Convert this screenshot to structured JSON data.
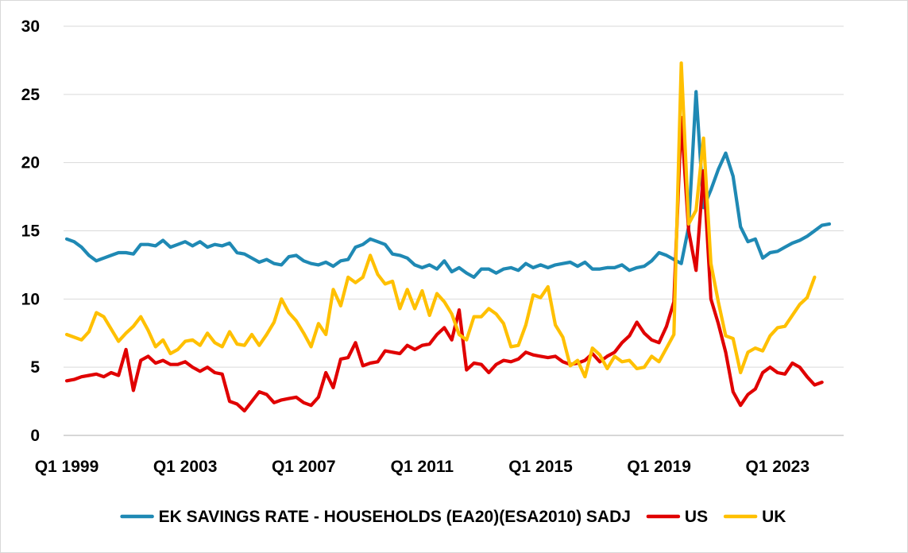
{
  "chart_data": {
    "type": "line",
    "title": "",
    "xlabel": "",
    "ylabel": "",
    "ylim": [
      0,
      30
    ],
    "yticks": [
      0,
      5,
      10,
      15,
      20,
      25,
      30
    ],
    "grid": "horizontal",
    "legend": "bottom",
    "x_start": "Q1 1999",
    "x_tick_labels": [
      "Q1 1999",
      "Q1 2003",
      "Q1 2007",
      "Q1 2011",
      "Q1 2015",
      "Q1 2019",
      "Q1 2023"
    ],
    "x_tick_every": 16,
    "series": [
      {
        "name": "EK SAVINGS RATE - HOUSEHOLDS (EA20)(ESA2010) SADJ",
        "color": "#1f89b4",
        "values": [
          14.4,
          14.2,
          13.8,
          13.2,
          12.8,
          13.0,
          13.2,
          13.4,
          13.4,
          13.3,
          14.0,
          14.0,
          13.9,
          14.3,
          13.8,
          14.0,
          14.2,
          13.9,
          14.2,
          13.8,
          14.0,
          13.9,
          14.1,
          13.4,
          13.3,
          13.0,
          12.7,
          12.9,
          12.6,
          12.5,
          13.1,
          13.2,
          12.8,
          12.6,
          12.5,
          12.7,
          12.4,
          12.8,
          12.9,
          13.8,
          14.0,
          14.4,
          14.2,
          14.0,
          13.3,
          13.2,
          13.0,
          12.5,
          12.3,
          12.5,
          12.2,
          12.8,
          12.0,
          12.3,
          11.9,
          11.6,
          12.2,
          12.2,
          11.9,
          12.2,
          12.3,
          12.1,
          12.6,
          12.3,
          12.5,
          12.3,
          12.5,
          12.6,
          12.7,
          12.4,
          12.7,
          12.2,
          12.2,
          12.3,
          12.3,
          12.5,
          12.1,
          12.3,
          12.4,
          12.8,
          13.4,
          13.2,
          12.9,
          12.6,
          15.3,
          25.2,
          16.7,
          18.0,
          19.5,
          20.7,
          19.0,
          15.3,
          14.2,
          14.4,
          13.0,
          13.4,
          13.5,
          13.8,
          14.1,
          14.3,
          14.6,
          15.0,
          15.4,
          15.5
        ]
      },
      {
        "name": "US",
        "color": "#e00000",
        "values": [
          4.0,
          4.1,
          4.3,
          4.4,
          4.5,
          4.3,
          4.6,
          4.4,
          6.3,
          3.3,
          5.5,
          5.8,
          5.3,
          5.5,
          5.2,
          5.2,
          5.4,
          5.0,
          4.7,
          5.0,
          4.6,
          4.5,
          2.5,
          2.3,
          1.8,
          2.5,
          3.2,
          3.0,
          2.4,
          2.6,
          2.7,
          2.8,
          2.4,
          2.2,
          2.8,
          4.6,
          3.5,
          5.6,
          5.7,
          6.8,
          5.1,
          5.3,
          5.4,
          6.2,
          6.1,
          6.0,
          6.6,
          6.3,
          6.6,
          6.7,
          7.4,
          7.9,
          7.0,
          9.2,
          4.8,
          5.3,
          5.2,
          4.6,
          5.2,
          5.5,
          5.4,
          5.6,
          6.1,
          5.9,
          5.8,
          5.7,
          5.8,
          5.4,
          5.2,
          5.3,
          5.5,
          6.0,
          5.4,
          5.8,
          6.1,
          6.8,
          7.3,
          8.3,
          7.5,
          7.0,
          6.8,
          8.0,
          9.8,
          23.3,
          15.0,
          12.1,
          19.4,
          10.0,
          8.2,
          6.1,
          3.2,
          2.2,
          3.0,
          3.4,
          4.6,
          5.0,
          4.6,
          4.5,
          5.3,
          5.0,
          4.3,
          3.7,
          3.9
        ]
      },
      {
        "name": "UK",
        "color": "#ffc000",
        "values": [
          7.4,
          7.2,
          7.0,
          7.6,
          9.0,
          8.7,
          7.8,
          6.9,
          7.5,
          8.0,
          8.7,
          7.7,
          6.5,
          7.0,
          6.0,
          6.3,
          6.9,
          7.0,
          6.6,
          7.5,
          6.8,
          6.5,
          7.6,
          6.7,
          6.6,
          7.4,
          6.6,
          7.4,
          8.3,
          10.0,
          9.0,
          8.4,
          7.5,
          6.5,
          8.2,
          7.4,
          10.7,
          9.5,
          11.6,
          11.2,
          11.6,
          13.2,
          11.8,
          11.1,
          11.3,
          9.3,
          10.7,
          9.3,
          10.6,
          8.8,
          10.4,
          9.8,
          8.9,
          7.4,
          7.0,
          8.7,
          8.7,
          9.3,
          8.9,
          8.2,
          6.5,
          6.6,
          8.1,
          10.3,
          10.1,
          10.9,
          8.1,
          7.2,
          5.1,
          5.5,
          4.3,
          6.4,
          5.9,
          4.9,
          5.8,
          5.4,
          5.5,
          4.9,
          5.0,
          5.8,
          5.4,
          6.4,
          7.4,
          27.3,
          15.5,
          16.5,
          21.8,
          12.6,
          9.8,
          7.3,
          7.1,
          4.6,
          6.1,
          6.4,
          6.2,
          7.3,
          7.9,
          8.0,
          8.8,
          9.6,
          10.1,
          11.6
        ]
      }
    ]
  }
}
